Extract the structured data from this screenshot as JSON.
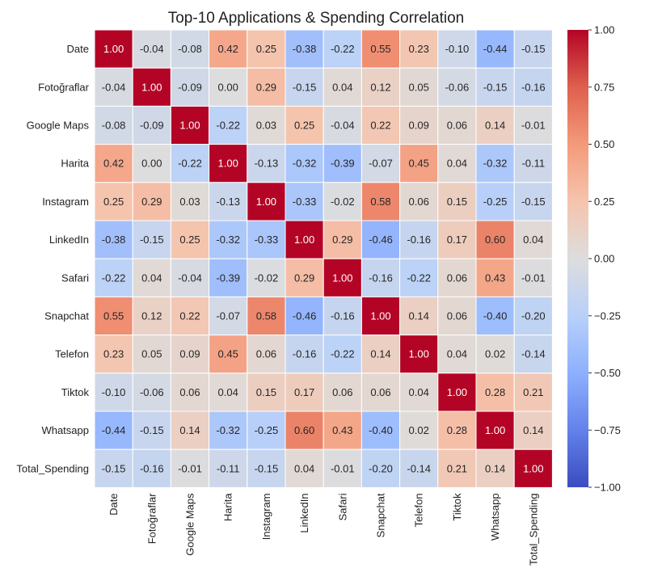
{
  "chart_data": {
    "type": "heatmap",
    "title": "Top-10 Applications & Spending Correlation",
    "xlabel": "",
    "ylabel": "",
    "labels": [
      "Date",
      "Fotoğraflar",
      "Google Maps",
      "Harita",
      "Instagram",
      "LinkedIn",
      "Safari",
      "Snapchat",
      "Telefon",
      "Tiktok",
      "Whatsapp",
      "Total_Spending"
    ],
    "values": [
      [
        1.0,
        -0.04,
        -0.08,
        0.42,
        0.25,
        -0.38,
        -0.22,
        0.55,
        0.23,
        -0.1,
        -0.44,
        -0.15
      ],
      [
        -0.04,
        1.0,
        -0.09,
        0.0,
        0.29,
        -0.15,
        0.04,
        0.12,
        0.05,
        -0.06,
        -0.15,
        -0.16
      ],
      [
        -0.08,
        -0.09,
        1.0,
        -0.22,
        0.03,
        0.25,
        -0.04,
        0.22,
        0.09,
        0.06,
        0.14,
        -0.01
      ],
      [
        0.42,
        0.0,
        -0.22,
        1.0,
        -0.13,
        -0.32,
        -0.39,
        -0.07,
        0.45,
        0.04,
        -0.32,
        -0.11
      ],
      [
        0.25,
        0.29,
        0.03,
        -0.13,
        1.0,
        -0.33,
        -0.02,
        0.58,
        0.06,
        0.15,
        -0.25,
        -0.15
      ],
      [
        -0.38,
        -0.15,
        0.25,
        -0.32,
        -0.33,
        1.0,
        0.29,
        -0.46,
        -0.16,
        0.17,
        0.6,
        0.04
      ],
      [
        -0.22,
        0.04,
        -0.04,
        -0.39,
        -0.02,
        0.29,
        1.0,
        -0.16,
        -0.22,
        0.06,
        0.43,
        -0.01
      ],
      [
        0.55,
        0.12,
        0.22,
        -0.07,
        0.58,
        -0.46,
        -0.16,
        1.0,
        0.14,
        0.06,
        -0.4,
        -0.2
      ],
      [
        0.23,
        0.05,
        0.09,
        0.45,
        0.06,
        -0.16,
        -0.22,
        0.14,
        1.0,
        0.04,
        0.02,
        -0.14
      ],
      [
        -0.1,
        -0.06,
        0.06,
        0.04,
        0.15,
        0.17,
        0.06,
        0.06,
        0.04,
        1.0,
        0.28,
        0.21
      ],
      [
        -0.44,
        -0.15,
        0.14,
        -0.32,
        -0.25,
        0.6,
        0.43,
        -0.4,
        0.02,
        0.28,
        1.0,
        0.14
      ],
      [
        -0.15,
        -0.16,
        -0.01,
        -0.11,
        -0.15,
        0.04,
        -0.01,
        -0.2,
        -0.14,
        0.21,
        0.14,
        1.0
      ]
    ],
    "colorbar": {
      "range": [
        -1.0,
        1.0
      ],
      "ticks": [
        1.0,
        0.75,
        0.5,
        0.25,
        0.0,
        -0.25,
        -0.5,
        -0.75,
        -1.0
      ],
      "tick_labels": [
        "1.00",
        "0.75",
        "0.50",
        "0.25",
        "0.00",
        "−0.25",
        "−0.50",
        "−0.75",
        "−1.00"
      ],
      "colormap": "coolwarm"
    },
    "annotations_format": "2 decimals",
    "grid": false
  }
}
